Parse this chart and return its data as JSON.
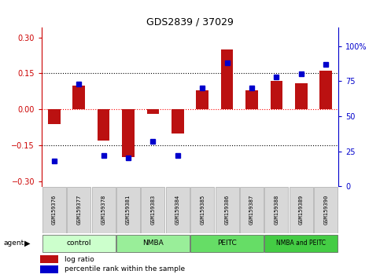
{
  "title": "GDS2839 / 37029",
  "samples": [
    "GSM159376",
    "GSM159377",
    "GSM159378",
    "GSM159381",
    "GSM159383",
    "GSM159384",
    "GSM159385",
    "GSM159386",
    "GSM159387",
    "GSM159388",
    "GSM159389",
    "GSM159390"
  ],
  "log_ratio": [
    -0.06,
    0.1,
    -0.13,
    -0.2,
    -0.02,
    -0.1,
    0.08,
    0.25,
    0.08,
    0.12,
    0.11,
    0.16
  ],
  "percentile": [
    18,
    73,
    22,
    20,
    32,
    22,
    70,
    88,
    70,
    78,
    80,
    87
  ],
  "groups": [
    {
      "label": "control",
      "start": 0,
      "end": 3,
      "color": "#ccffcc"
    },
    {
      "label": "NMBA",
      "start": 3,
      "end": 6,
      "color": "#99ee99"
    },
    {
      "label": "PEITC",
      "start": 6,
      "end": 9,
      "color": "#66dd66"
    },
    {
      "label": "NMBA and PEITC",
      "start": 9,
      "end": 12,
      "color": "#44cc44"
    }
  ],
  "bar_color": "#bb1111",
  "dot_color": "#0000cc",
  "ylim_left": [
    -0.32,
    0.34
  ],
  "ylim_right": [
    0,
    113
  ],
  "yticks_left": [
    -0.3,
    -0.15,
    0,
    0.15,
    0.3
  ],
  "yticks_right": [
    0,
    25,
    50,
    75,
    100
  ],
  "hlines": [
    -0.15,
    0.0,
    0.15
  ],
  "hline_styles": [
    "dotted",
    "dotted",
    "dotted"
  ],
  "hline_colors": [
    "black",
    "red",
    "black"
  ],
  "legend_items": [
    {
      "label": "log ratio",
      "color": "#bb1111"
    },
    {
      "label": "percentile rank within the sample",
      "color": "#0000cc"
    }
  ],
  "sample_box_color": "#d8d8d8",
  "sample_box_edge": "#aaaaaa"
}
